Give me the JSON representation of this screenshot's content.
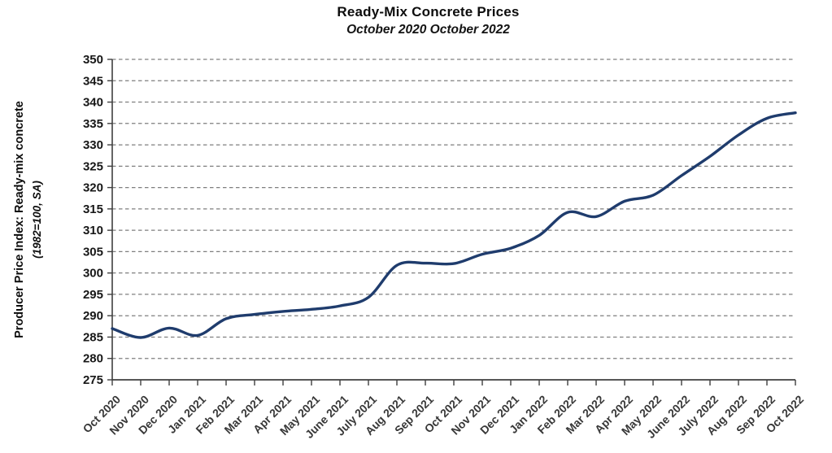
{
  "header": {
    "title": "Ready-Mix Concrete Prices",
    "subtitle": "October 2020 October 2022"
  },
  "y_axis": {
    "label_line1": "Producer Price Index: Ready-mix concrete",
    "label_line2": "(1982=100, SA)"
  },
  "chart_data": {
    "type": "line",
    "title": "Ready-Mix Concrete Prices",
    "subtitle": "October 2020 October 2022",
    "xlabel": "",
    "ylabel": "Producer Price Index: Ready-mix concrete (1982=100, SA)",
    "ylim": [
      275,
      350
    ],
    "ytick_step": 5,
    "grid": "horizontal-dashed",
    "legend": "none",
    "line_color": "#1f3c6d",
    "grid_color": "#7f7f7f",
    "axis_color": "#3f3f3f",
    "x": [
      "Oct 2020",
      "Nov 2020",
      "Dec 2020",
      "Jan 2021",
      "Feb 2021",
      "Mar 2021",
      "Apr 2021",
      "May 2021",
      "June 2021",
      "July 2021",
      "Aug 2021",
      "Sep 2021",
      "Oct 2021",
      "Nov 2021",
      "Dec 2021",
      "Jan 2022",
      "Feb 2022",
      "Mar 2022",
      "Apr 2022",
      "May 2022",
      "June 2022",
      "July 2022",
      "Aug 2022",
      "Sep 2022",
      "Oct 2022"
    ],
    "values": [
      287.0,
      284.9,
      287.1,
      285.4,
      289.3,
      290.3,
      291.0,
      291.5,
      292.3,
      294.3,
      301.8,
      302.3,
      302.2,
      304.4,
      305.8,
      308.8,
      314.2,
      313.2,
      316.8,
      318.2,
      322.8,
      327.3,
      332.3,
      336.2,
      337.5
    ]
  }
}
